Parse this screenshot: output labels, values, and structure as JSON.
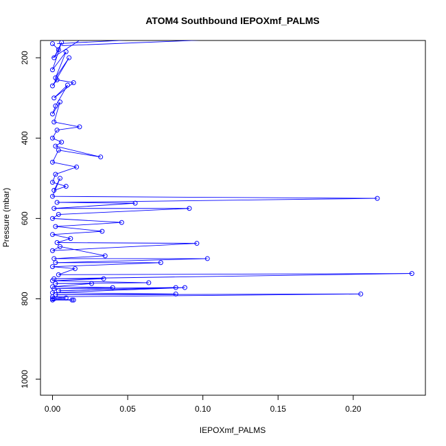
{
  "chart_data": {
    "type": "line",
    "title": "ATOM4 Southbound IEPOXmf_PALMS",
    "xlabel": "IEPOXmf_PALMS",
    "ylabel": "Pressure (mbar)",
    "xlim": [
      -0.008,
      0.248
    ],
    "ylim": [
      1040,
      157
    ],
    "y_reversed": true,
    "x_ticks": [
      0.0,
      0.05,
      0.1,
      0.15,
      0.2
    ],
    "x_tick_labels": [
      "0.00",
      "0.05",
      "0.10",
      "0.15",
      "0.20"
    ],
    "y_ticks": [
      200,
      400,
      600,
      800,
      1000
    ],
    "y_tick_labels": [
      "200",
      "400",
      "600",
      "800",
      "1000"
    ],
    "grid": false,
    "legend": "none",
    "series_color": "#0000ff",
    "marker": "open-circle",
    "points": [
      [
        0.0,
        165
      ],
      [
        0.004,
        180
      ],
      [
        0.001,
        200
      ],
      [
        0.006,
        162
      ],
      [
        0.0,
        230
      ],
      [
        0.009,
        185
      ],
      [
        0.002,
        250
      ],
      [
        0.011,
        200
      ],
      [
        0.0,
        270
      ],
      [
        0.003,
        255
      ],
      [
        0.014,
        262
      ],
      [
        0.001,
        300
      ],
      [
        0.01,
        268
      ],
      [
        0.002,
        320
      ],
      [
        0.0,
        340
      ],
      [
        0.005,
        310
      ],
      [
        0.001,
        360
      ],
      [
        0.018,
        372
      ],
      [
        0.003,
        380
      ],
      [
        0.0,
        400
      ],
      [
        0.006,
        410
      ],
      [
        0.002,
        420
      ],
      [
        0.032,
        447
      ],
      [
        0.004,
        430
      ],
      [
        0.0,
        460
      ],
      [
        0.016,
        472
      ],
      [
        0.002,
        490
      ],
      [
        0.0,
        510
      ],
      [
        0.009,
        520
      ],
      [
        0.001,
        530
      ],
      [
        0.005,
        500
      ],
      [
        0.0,
        545
      ],
      [
        0.216,
        550
      ],
      [
        0.003,
        560
      ],
      [
        0.055,
        562
      ],
      [
        0.001,
        575
      ],
      [
        0.091,
        575
      ],
      [
        0.004,
        590
      ],
      [
        0.0,
        600
      ],
      [
        0.046,
        610
      ],
      [
        0.002,
        620
      ],
      [
        0.033,
        632
      ],
      [
        0.0,
        640
      ],
      [
        0.012,
        650
      ],
      [
        0.003,
        660
      ],
      [
        0.096,
        662
      ],
      [
        0.0,
        680
      ],
      [
        0.005,
        670
      ],
      [
        0.035,
        693
      ],
      [
        0.001,
        700
      ],
      [
        0.103,
        700
      ],
      [
        0.002,
        710
      ],
      [
        0.072,
        710
      ],
      [
        0.0,
        720
      ],
      [
        0.015,
        725
      ],
      [
        0.004,
        740
      ],
      [
        0.239,
        737
      ],
      [
        0.001,
        750
      ],
      [
        0.034,
        750
      ],
      [
        0.0,
        755
      ],
      [
        0.064,
        760
      ],
      [
        0.002,
        762
      ],
      [
        0.026,
        762
      ],
      [
        0.0,
        770
      ],
      [
        0.04,
        772
      ],
      [
        0.001,
        775
      ],
      [
        0.082,
        772
      ],
      [
        0.004,
        780
      ],
      [
        0.088,
        772
      ],
      [
        0.0,
        785
      ],
      [
        0.082,
        788
      ],
      [
        0.002,
        790
      ],
      [
        0.205,
        788
      ],
      [
        0.0,
        795
      ],
      [
        0.009,
        798
      ],
      [
        0.001,
        800
      ],
      [
        0.014,
        803
      ],
      [
        0.0,
        803
      ],
      [
        0.013,
        803
      ],
      [
        0.0,
        800
      ]
    ],
    "extra_segments": [
      [
        [
          0.0,
          200
        ],
        [
          0.022,
          147
        ]
      ],
      [
        [
          0.003,
          165
        ],
        [
          0.097,
          147
        ]
      ],
      [
        [
          0.006,
          170
        ],
        [
          0.16,
          147
        ]
      ]
    ]
  }
}
